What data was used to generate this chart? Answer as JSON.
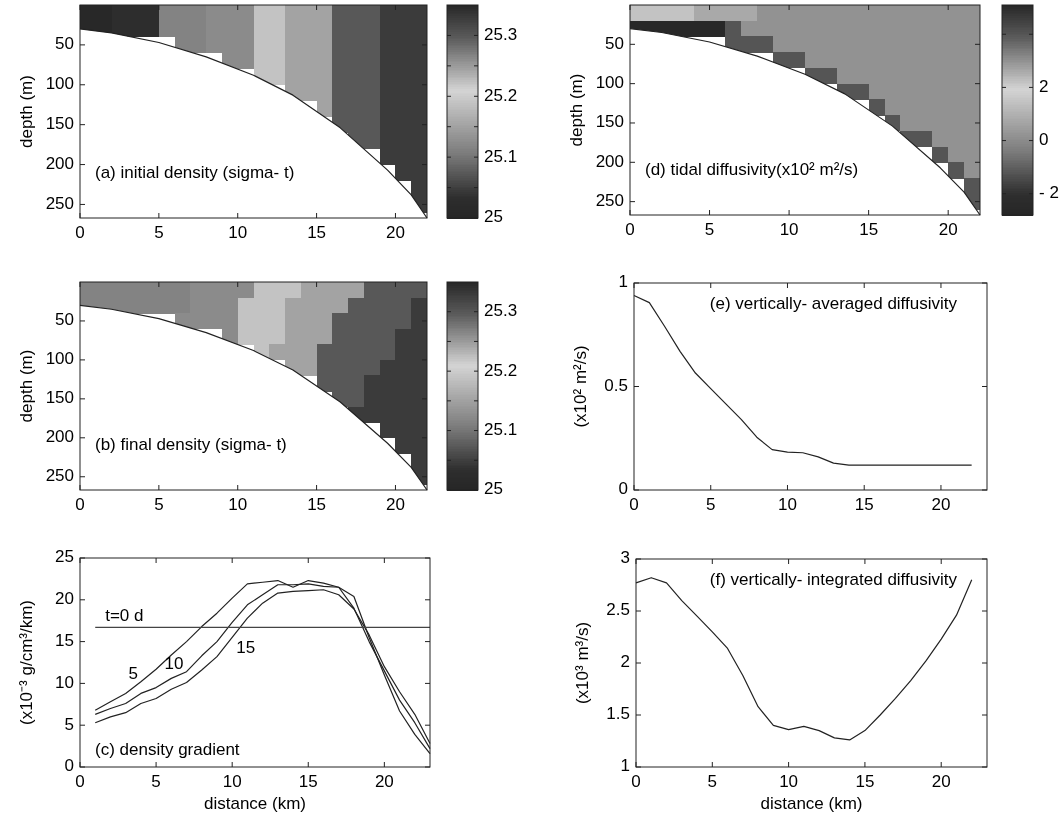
{
  "chart_data": [
    {
      "type": "heatmap",
      "ylabel": "depth (m)",
      "annotations": [
        "(a) initial density (sigma- t)"
      ],
      "x": [
        0.5,
        1.5,
        2.5,
        3.5,
        4.5,
        5.5,
        6.5,
        7.5,
        8.5,
        9.5,
        10.5,
        11.5,
        12.5,
        13.5,
        14.5,
        15.5,
        16.5,
        17.5,
        18.5,
        19.5,
        20.5,
        21.5
      ],
      "y": [
        10,
        30,
        50,
        70,
        90,
        110,
        130,
        150,
        170,
        190,
        210,
        230,
        250
      ],
      "cells": [
        [
          25.01,
          25.01,
          25.03,
          25.03,
          25.03,
          25.115,
          25.115,
          25.115,
          25.125,
          25.125,
          25.125,
          25.19,
          25.19,
          25.245,
          25.245,
          25.245,
          25.3,
          25.3,
          25.3,
          25.33,
          25.33,
          25.33
        ],
        [
          25.01,
          25.01,
          25.03,
          25.03,
          25.03,
          25.115,
          25.115,
          25.115,
          25.125,
          25.125,
          25.125,
          25.19,
          25.19,
          25.245,
          25.245,
          25.245,
          25.3,
          25.3,
          25.3,
          25.33,
          25.33,
          25.33
        ],
        [
          null,
          null,
          null,
          null,
          null,
          null,
          25.115,
          25.115,
          25.125,
          25.125,
          25.125,
          25.19,
          25.19,
          25.245,
          25.245,
          25.245,
          25.3,
          25.3,
          25.3,
          25.33,
          25.33,
          25.33
        ],
        [
          null,
          null,
          null,
          null,
          null,
          null,
          null,
          null,
          null,
          25.125,
          25.125,
          25.19,
          25.19,
          25.245,
          25.245,
          25.245,
          25.3,
          25.3,
          25.3,
          25.33,
          25.33,
          25.33
        ],
        [
          null,
          null,
          null,
          null,
          null,
          null,
          null,
          null,
          null,
          null,
          null,
          25.19,
          25.19,
          25.245,
          25.245,
          25.245,
          25.3,
          25.3,
          25.3,
          25.33,
          25.33,
          25.33
        ],
        [
          null,
          null,
          null,
          null,
          null,
          null,
          null,
          null,
          null,
          null,
          null,
          null,
          null,
          25.245,
          25.245,
          25.245,
          25.3,
          25.3,
          25.3,
          25.33,
          25.33,
          25.33
        ],
        [
          null,
          null,
          null,
          null,
          null,
          null,
          null,
          null,
          null,
          null,
          null,
          null,
          null,
          null,
          null,
          25.245,
          25.3,
          25.3,
          25.3,
          25.33,
          25.33,
          25.33
        ],
        [
          null,
          null,
          null,
          null,
          null,
          null,
          null,
          null,
          null,
          null,
          null,
          null,
          null,
          null,
          null,
          null,
          25.3,
          25.3,
          25.3,
          25.33,
          25.33,
          25.33
        ],
        [
          null,
          null,
          null,
          null,
          null,
          null,
          null,
          null,
          null,
          null,
          null,
          null,
          null,
          null,
          null,
          null,
          null,
          25.3,
          25.3,
          25.33,
          25.33,
          25.33
        ],
        [
          null,
          null,
          null,
          null,
          null,
          null,
          null,
          null,
          null,
          null,
          null,
          null,
          null,
          null,
          null,
          null,
          null,
          null,
          null,
          25.33,
          25.33,
          25.33
        ],
        [
          null,
          null,
          null,
          null,
          null,
          null,
          null,
          null,
          null,
          null,
          null,
          null,
          null,
          null,
          null,
          null,
          null,
          null,
          null,
          null,
          25.33,
          25.33
        ],
        [
          null,
          null,
          null,
          null,
          null,
          null,
          null,
          null,
          null,
          null,
          null,
          null,
          null,
          null,
          null,
          null,
          null,
          null,
          null,
          null,
          null,
          25.33
        ],
        [
          null,
          null,
          null,
          null,
          null,
          null,
          null,
          null,
          null,
          null,
          null,
          null,
          null,
          null,
          null,
          null,
          null,
          null,
          null,
          null,
          null,
          25.33
        ]
      ],
      "clim": [
        25,
        25.35
      ],
      "cticks": [
        25,
        {
          "value": 25.05,
          "label": null
        },
        25.1,
        {
          "value": 25.15,
          "label": null
        },
        25.2,
        {
          "value": 25.25,
          "label": null
        },
        25.3
      ],
      "series": [
        {
          "type": "line",
          "color": "#222222",
          "x": [
            0,
            2,
            5,
            8,
            11,
            13.5,
            16.5,
            19.5,
            21,
            22
          ],
          "values": [
            30,
            35,
            47,
            65,
            88,
            113,
            154,
            207,
            238,
            267
          ]
        }
      ],
      "xlim": [
        0,
        22
      ],
      "xticks": [
        0,
        5,
        10,
        15,
        20
      ],
      "ylim": [
        267,
        0
      ],
      "yticks": [
        50,
        100,
        150,
        200,
        250
      ]
    },
    {
      "type": "heatmap",
      "ylabel": "depth (m)",
      "annotations": [
        "(d) tidal diffusivity(x10² m²/s)"
      ],
      "x": [
        0.5,
        1.5,
        2.5,
        3.5,
        4.5,
        5.5,
        6.5,
        7.5,
        8.5,
        9.5,
        10.5,
        11.5,
        12.5,
        13.5,
        14.5,
        15.5,
        16.5,
        17.5,
        18.5,
        19.5,
        20.5,
        21.5
      ],
      "y": [
        10,
        30,
        50,
        70,
        90,
        110,
        130,
        150,
        170,
        190,
        210,
        230,
        250
      ],
      "cells": [
        [
          1.5,
          1.5,
          1.5,
          1.5,
          0.8,
          0.8,
          0.8,
          0.8,
          0.2,
          0.2,
          0.2,
          0.2,
          0.2,
          0.2,
          0.2,
          0.2,
          0.2,
          0.2,
          0.2,
          0.2,
          0.2,
          0.2
        ],
        [
          -2.6,
          -2.6,
          -2.6,
          -2.6,
          -2.6,
          -2.6,
          -1.2,
          0.2,
          0.2,
          0.2,
          0.2,
          0.2,
          0.2,
          0.2,
          0.2,
          0.2,
          0.2,
          0.2,
          0.2,
          0.2,
          0.2,
          0.2
        ],
        [
          null,
          null,
          null,
          null,
          null,
          null,
          -1.2,
          -1.2,
          -1.2,
          0.2,
          0.2,
          0.2,
          0.2,
          0.2,
          0.2,
          0.2,
          0.2,
          0.2,
          0.2,
          0.2,
          0.2,
          0.2
        ],
        [
          null,
          null,
          null,
          null,
          null,
          null,
          null,
          null,
          null,
          -1.2,
          -1.2,
          0.2,
          0.2,
          0.2,
          0.2,
          0.2,
          0.2,
          0.2,
          0.2,
          0.2,
          0.2,
          0.2
        ],
        [
          null,
          null,
          null,
          null,
          null,
          null,
          null,
          null,
          null,
          null,
          null,
          -1.2,
          -1.2,
          0.2,
          0.2,
          0.2,
          0.2,
          0.2,
          0.2,
          0.2,
          0.2,
          0.2
        ],
        [
          null,
          null,
          null,
          null,
          null,
          null,
          null,
          null,
          null,
          null,
          null,
          null,
          null,
          -1.2,
          -1.2,
          0.2,
          0.2,
          0.2,
          0.2,
          0.2,
          0.2,
          0.2
        ],
        [
          null,
          null,
          null,
          null,
          null,
          null,
          null,
          null,
          null,
          null,
          null,
          null,
          null,
          null,
          null,
          -1.2,
          0.2,
          0.2,
          0.2,
          0.2,
          0.2,
          0.2
        ],
        [
          null,
          null,
          null,
          null,
          null,
          null,
          null,
          null,
          null,
          null,
          null,
          null,
          null,
          null,
          null,
          null,
          -1.2,
          0.2,
          0.2,
          0.2,
          0.2,
          0.2
        ],
        [
          null,
          null,
          null,
          null,
          null,
          null,
          null,
          null,
          null,
          null,
          null,
          null,
          null,
          null,
          null,
          null,
          null,
          -1.2,
          -1.2,
          0.2,
          0.2,
          0.2
        ],
        [
          null,
          null,
          null,
          null,
          null,
          null,
          null,
          null,
          null,
          null,
          null,
          null,
          null,
          null,
          null,
          null,
          null,
          null,
          null,
          -1.2,
          0.2,
          0.2
        ],
        [
          null,
          null,
          null,
          null,
          null,
          null,
          null,
          null,
          null,
          null,
          null,
          null,
          null,
          null,
          null,
          null,
          null,
          null,
          null,
          null,
          -1.2,
          0.2
        ],
        [
          null,
          null,
          null,
          null,
          null,
          null,
          null,
          null,
          null,
          null,
          null,
          null,
          null,
          null,
          null,
          null,
          null,
          null,
          null,
          null,
          null,
          -1.2
        ],
        [
          null,
          null,
          null,
          null,
          null,
          null,
          null,
          null,
          null,
          null,
          null,
          null,
          null,
          null,
          null,
          null,
          null,
          null,
          null,
          null,
          null,
          -1.2
        ]
      ],
      "clim": [
        -2.8,
        5.1
      ],
      "cticks": [
        {
          "value": -2,
          "label": "- 2"
        },
        0,
        2,
        {
          "value": 4,
          "label": null
        }
      ],
      "series": [
        {
          "type": "line",
          "color": "#222222",
          "x": [
            0,
            2,
            5,
            8,
            11,
            13.5,
            16.5,
            19.5,
            21,
            22
          ],
          "values": [
            30,
            35,
            47,
            65,
            88,
            113,
            154,
            207,
            238,
            267
          ]
        }
      ],
      "xlim": [
        0,
        22
      ],
      "xticks": [
        0,
        5,
        10,
        15,
        20
      ],
      "ylim": [
        267,
        0
      ],
      "yticks": [
        50,
        100,
        150,
        200,
        250
      ]
    },
    {
      "type": "heatmap",
      "ylabel": "depth (m)",
      "annotations": [
        "(b) final density (sigma- t)"
      ],
      "x": [
        0.5,
        1.5,
        2.5,
        3.5,
        4.5,
        5.5,
        6.5,
        7.5,
        8.5,
        9.5,
        10.5,
        11.5,
        12.5,
        13.5,
        14.5,
        15.5,
        16.5,
        17.5,
        18.5,
        19.5,
        20.5,
        21.5
      ],
      "y": [
        10,
        30,
        50,
        70,
        90,
        110,
        130,
        150,
        170,
        190,
        210,
        230,
        250
      ],
      "cells": [
        [
          25.115,
          25.115,
          25.115,
          25.115,
          25.115,
          25.115,
          25.115,
          25.125,
          25.125,
          25.125,
          25.125,
          25.19,
          25.19,
          25.19,
          25.245,
          25.245,
          25.245,
          25.245,
          25.3,
          25.3,
          25.3,
          25.3
        ],
        [
          25.115,
          25.115,
          25.115,
          25.115,
          25.115,
          25.115,
          25.115,
          25.125,
          25.125,
          25.125,
          25.19,
          25.19,
          25.19,
          25.245,
          25.245,
          25.245,
          25.245,
          25.3,
          25.3,
          25.3,
          25.3,
          25.33
        ],
        [
          null,
          null,
          null,
          null,
          null,
          null,
          25.125,
          25.125,
          25.125,
          25.125,
          25.19,
          25.19,
          25.19,
          25.245,
          25.245,
          25.245,
          25.3,
          25.3,
          25.3,
          25.3,
          25.3,
          25.33
        ],
        [
          null,
          null,
          null,
          null,
          null,
          null,
          null,
          null,
          null,
          25.125,
          25.19,
          25.19,
          25.19,
          25.245,
          25.245,
          25.245,
          25.3,
          25.3,
          25.3,
          25.3,
          25.33,
          25.33
        ],
        [
          null,
          null,
          null,
          null,
          null,
          null,
          null,
          null,
          null,
          null,
          null,
          25.19,
          25.245,
          25.245,
          25.245,
          25.3,
          25.3,
          25.3,
          25.3,
          25.3,
          25.33,
          25.33
        ],
        [
          null,
          null,
          null,
          null,
          null,
          null,
          null,
          null,
          null,
          null,
          null,
          null,
          null,
          25.245,
          25.245,
          25.3,
          25.3,
          25.3,
          25.3,
          25.33,
          25.33,
          25.33
        ],
        [
          null,
          null,
          null,
          null,
          null,
          null,
          null,
          null,
          null,
          null,
          null,
          null,
          null,
          null,
          null,
          25.3,
          25.3,
          25.3,
          25.33,
          25.33,
          25.33,
          25.33
        ],
        [
          null,
          null,
          null,
          null,
          null,
          null,
          null,
          null,
          null,
          null,
          null,
          null,
          null,
          null,
          null,
          null,
          25.3,
          25.3,
          25.33,
          25.33,
          25.33,
          25.33
        ],
        [
          null,
          null,
          null,
          null,
          null,
          null,
          null,
          null,
          null,
          null,
          null,
          null,
          null,
          null,
          null,
          null,
          null,
          25.33,
          25.33,
          25.33,
          25.33,
          25.33
        ],
        [
          null,
          null,
          null,
          null,
          null,
          null,
          null,
          null,
          null,
          null,
          null,
          null,
          null,
          null,
          null,
          null,
          null,
          null,
          null,
          25.33,
          25.33,
          25.33
        ],
        [
          null,
          null,
          null,
          null,
          null,
          null,
          null,
          null,
          null,
          null,
          null,
          null,
          null,
          null,
          null,
          null,
          null,
          null,
          null,
          null,
          25.33,
          25.33
        ],
        [
          null,
          null,
          null,
          null,
          null,
          null,
          null,
          null,
          null,
          null,
          null,
          null,
          null,
          null,
          null,
          null,
          null,
          null,
          null,
          null,
          null,
          25.33
        ],
        [
          null,
          null,
          null,
          null,
          null,
          null,
          null,
          null,
          null,
          null,
          null,
          null,
          null,
          null,
          null,
          null,
          null,
          null,
          null,
          null,
          null,
          25.33
        ]
      ],
      "clim": [
        25,
        25.35
      ],
      "cticks": [
        25,
        {
          "value": 25.05,
          "label": null
        },
        25.1,
        {
          "value": 25.15,
          "label": null
        },
        25.2,
        {
          "value": 25.25,
          "label": null
        },
        25.3
      ],
      "series": [
        {
          "type": "line",
          "color": "#222222",
          "x": [
            0,
            2,
            5,
            8,
            11,
            13.5,
            16.5,
            19.5,
            21,
            22
          ],
          "values": [
            30,
            35,
            47,
            65,
            88,
            113,
            154,
            207,
            238,
            267
          ]
        }
      ],
      "xlim": [
        0,
        22
      ],
      "xticks": [
        0,
        5,
        10,
        15,
        20
      ],
      "ylim": [
        267,
        0
      ],
      "yticks": [
        50,
        100,
        150,
        200,
        250
      ]
    },
    {
      "type": "line",
      "ylabel": "(x10² m²/s)",
      "annotations": [
        "(e) vertically- averaged diffusivity"
      ],
      "x": [
        0,
        1,
        2,
        3,
        4,
        5,
        6,
        7,
        8,
        9,
        10,
        11,
        12,
        13,
        14,
        15,
        16,
        17,
        18,
        19,
        20,
        21,
        22
      ],
      "series": [
        {
          "color": "#222222",
          "values": [
            0.94,
            0.905,
            0.79,
            0.67,
            0.565,
            0.49,
            0.415,
            0.34,
            0.255,
            0.195,
            0.183,
            0.18,
            0.16,
            0.13,
            0.12,
            0.12,
            0.12,
            0.12,
            0.12,
            0.12,
            0.12,
            0.12,
            0.12
          ]
        }
      ],
      "xlim": [
        0,
        23
      ],
      "xticks": [
        0,
        5,
        10,
        15,
        20
      ],
      "ylim": [
        0,
        1
      ],
      "yticks": [
        0,
        0.5,
        1
      ]
    },
    {
      "type": "line",
      "xlabel": "distance (km)",
      "ylabel": "(x10⁻³ g/cm³/km)",
      "annotations": [
        "(c) density gradient"
      ],
      "x": [
        1,
        2,
        3,
        4,
        5,
        6,
        7,
        8,
        9,
        10,
        11,
        12,
        13,
        14,
        15,
        16,
        17,
        18,
        19,
        20,
        21,
        22,
        23
      ],
      "series": [
        {
          "name": "5",
          "color": "#222222",
          "values": [
            6.8,
            7.8,
            8.8,
            10.2,
            11.7,
            13.4,
            15,
            16.8,
            18.4,
            20.2,
            21.9,
            22.1,
            22.3,
            21.5,
            22.3,
            22,
            21.5,
            20.4,
            15.5,
            11,
            6.7,
            3.9,
            1.6
          ]
        },
        {
          "name": "10",
          "color": "#222222",
          "values": [
            6.3,
            7,
            7.6,
            8.8,
            9.5,
            10.6,
            11.4,
            13.3,
            15,
            17.3,
            19.4,
            20.6,
            21.8,
            21.8,
            21.9,
            21.6,
            21.5,
            19,
            15,
            11.5,
            8,
            5.3,
            2.2
          ]
        },
        {
          "name": "15",
          "color": "#222222",
          "values": [
            5.3,
            6,
            6.5,
            7.6,
            8.2,
            9.3,
            10.1,
            11.6,
            13.2,
            15.5,
            17.8,
            19.6,
            20.8,
            21,
            21.1,
            21.2,
            20.6,
            18.9,
            15.8,
            12,
            9,
            6.3,
            2.8
          ]
        },
        {
          "name": "t=0 d",
          "color": "#444444",
          "x": [
            1,
            23
          ],
          "values": [
            16.7,
            16.7
          ]
        }
      ],
      "xlim": [
        0,
        23
      ],
      "xticks": [
        0,
        5,
        10,
        15,
        20
      ],
      "ylim": [
        0,
        25
      ],
      "yticks": [
        0,
        5,
        10,
        15,
        20,
        25
      ]
    },
    {
      "type": "line",
      "xlabel": "distance (km)",
      "ylabel": "(x10³ m³/s)",
      "annotations": [
        "(f) vertically- integrated diffusivity"
      ],
      "x": [
        0,
        1,
        2,
        3,
        4,
        5,
        6,
        7,
        8,
        9,
        10,
        11,
        12,
        13,
        14,
        15,
        16,
        17,
        18,
        19,
        20,
        21,
        22
      ],
      "series": [
        {
          "color": "#222222",
          "values": [
            2.77,
            2.82,
            2.77,
            2.6,
            2.45,
            2.3,
            2.14,
            1.88,
            1.58,
            1.4,
            1.36,
            1.39,
            1.35,
            1.28,
            1.26,
            1.35,
            1.5,
            1.66,
            1.83,
            2.02,
            2.23,
            2.46,
            2.8
          ]
        }
      ],
      "xlim": [
        0,
        23
      ],
      "xticks": [
        0,
        5,
        10,
        15,
        20
      ],
      "ylim": [
        1,
        3
      ],
      "yticks": [
        1,
        1.5,
        2,
        2.5,
        3
      ]
    }
  ]
}
